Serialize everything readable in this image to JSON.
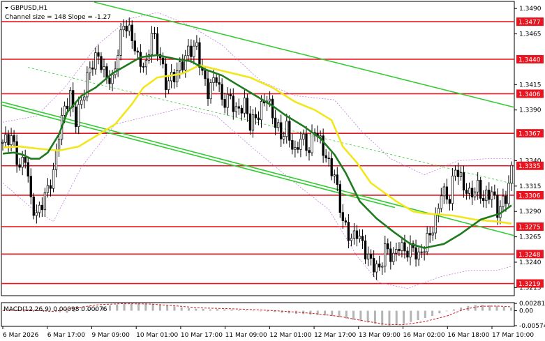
{
  "header": {
    "symbol": "GBPUSD,H1",
    "channel_info": "Channel size = 148 Slope = -1.27",
    "macd_label": "MACD(12,26,9) 0.00098 0.00076"
  },
  "colors": {
    "level_line": "#e8141f",
    "ma_fast": "#1f7a1f",
    "ma_slow": "#f2e61c",
    "channel": "#33cc33",
    "bollinger": "#c07ed6",
    "candle": "#000000",
    "macd_hist": "#b4b4b4",
    "macd_signal": "#cc1a1a",
    "last_price_bg": "#e8141f"
  },
  "chart_data": {
    "type": "candlestick",
    "price_axis_ticks": [
      "1.3490",
      "1.3465",
      "1.3415",
      "1.3390",
      "1.3340",
      "1.3315",
      "1.3290",
      "1.3265",
      "1.3240",
      "1.3215"
    ],
    "price_levels": [
      {
        "value": 1.3477,
        "label": "1.3477"
      },
      {
        "value": 1.344,
        "label": "1.3440"
      },
      {
        "value": 1.3406,
        "label": "1.3406"
      },
      {
        "value": 1.3367,
        "label": "1.3367"
      },
      {
        "value": 1.3335,
        "label": "1.3335"
      },
      {
        "value": 1.3306,
        "label": "1.3306"
      },
      {
        "value": 1.3275,
        "label": "1.3275"
      },
      {
        "value": 1.3248,
        "label": "1.3248"
      },
      {
        "value": 1.3219,
        "label": "1.3219"
      }
    ],
    "time_axis_labels": [
      "6 Mar 2026",
      "6 Mar 17:00",
      "9 Mar 09:00",
      "10 Mar 01:00",
      "10 Mar 17:00",
      "11 Mar 09:00",
      "12 Mar 01:00",
      "12 Mar 17:00",
      "13 Mar 09:00",
      "16 Mar 02:00",
      "16 Mar 18:00",
      "17 Mar 10:00"
    ],
    "macd_axis_ticks": [
      "0.00281",
      "0.00",
      "-0.00574"
    ],
    "ylim": [
      1.3207,
      1.3497
    ],
    "macd_ylim": [
      -0.006,
      0.0031
    ],
    "close_path": [
      [
        0,
        1.3358
      ],
      [
        3,
        1.3364
      ],
      [
        6,
        1.3332
      ],
      [
        8,
        1.3345
      ],
      [
        10,
        1.33
      ],
      [
        12,
        1.3286
      ],
      [
        15,
        1.3305
      ],
      [
        18,
        1.3327
      ],
      [
        20,
        1.3368
      ],
      [
        22,
        1.3392
      ],
      [
        24,
        1.3404
      ],
      [
        26,
        1.338
      ],
      [
        29,
        1.3409
      ],
      [
        31,
        1.3432
      ],
      [
        34,
        1.3444
      ],
      [
        36,
        1.3426
      ],
      [
        39,
        1.3418
      ],
      [
        41,
        1.3448
      ],
      [
        43,
        1.3476
      ],
      [
        46,
        1.3462
      ],
      [
        48,
        1.344
      ],
      [
        51,
        1.3432
      ],
      [
        53,
        1.3467
      ],
      [
        56,
        1.3442
      ],
      [
        58,
        1.3416
      ],
      [
        61,
        1.3424
      ],
      [
        64,
        1.3436
      ],
      [
        66,
        1.3448
      ],
      [
        69,
        1.3452
      ],
      [
        71,
        1.3426
      ],
      [
        73,
        1.3408
      ],
      [
        76,
        1.3424
      ],
      [
        78,
        1.3398
      ],
      [
        81,
        1.3402
      ],
      [
        83,
        1.3388
      ],
      [
        86,
        1.3396
      ],
      [
        88,
        1.3376
      ],
      [
        91,
        1.3386
      ],
      [
        94,
        1.3404
      ],
      [
        96,
        1.3384
      ],
      [
        99,
        1.3364
      ],
      [
        101,
        1.3372
      ],
      [
        104,
        1.3346
      ],
      [
        106,
        1.3364
      ],
      [
        109,
        1.335
      ],
      [
        111,
        1.3372
      ],
      [
        113,
        1.3358
      ],
      [
        116,
        1.3336
      ],
      [
        118,
        1.3326
      ],
      [
        121,
        1.328
      ],
      [
        124,
        1.3262
      ],
      [
        126,
        1.327
      ],
      [
        129,
        1.325
      ],
      [
        131,
        1.324
      ],
      [
        134,
        1.3232
      ],
      [
        136,
        1.3254
      ],
      [
        139,
        1.3244
      ],
      [
        141,
        1.3258
      ],
      [
        143,
        1.325
      ],
      [
        146,
        1.3254
      ],
      [
        148,
        1.3244
      ],
      [
        151,
        1.3262
      ],
      [
        154,
        1.328
      ],
      [
        156,
        1.331
      ],
      [
        159,
        1.3302
      ],
      [
        161,
        1.3334
      ],
      [
        164,
        1.3315
      ],
      [
        166,
        1.3306
      ],
      [
        169,
        1.3314
      ],
      [
        171,
        1.3302
      ],
      [
        174,
        1.331
      ],
      [
        176,
        1.329
      ],
      [
        179,
        1.3304
      ],
      [
        181,
        1.333
      ]
    ],
    "ma_fast": [
      [
        0,
        1.3347
      ],
      [
        4,
        1.3348
      ],
      [
        7,
        1.3346
      ],
      [
        10,
        1.3342
      ],
      [
        13,
        1.3342
      ],
      [
        16,
        1.3348
      ],
      [
        20,
        1.3366
      ],
      [
        23,
        1.3388
      ],
      [
        28,
        1.3404
      ],
      [
        33,
        1.3412
      ],
      [
        39,
        1.3426
      ],
      [
        44,
        1.3434
      ],
      [
        49,
        1.3442
      ],
      [
        55,
        1.3444
      ],
      [
        62,
        1.344
      ],
      [
        67,
        1.3438
      ],
      [
        72,
        1.343
      ],
      [
        78,
        1.3424
      ],
      [
        84,
        1.3414
      ],
      [
        90,
        1.3404
      ],
      [
        96,
        1.3394
      ],
      [
        101,
        1.3384
      ],
      [
        107,
        1.3374
      ],
      [
        113,
        1.3362
      ],
      [
        118,
        1.3346
      ],
      [
        122,
        1.3328
      ],
      [
        127,
        1.33
      ],
      [
        133,
        1.3283
      ],
      [
        139,
        1.327
      ],
      [
        145,
        1.3258
      ],
      [
        150,
        1.3254
      ],
      [
        157,
        1.3258
      ],
      [
        163,
        1.3268
      ],
      [
        170,
        1.3282
      ],
      [
        177,
        1.3288
      ],
      [
        181,
        1.3296
      ]
    ],
    "ma_slow": [
      [
        0,
        1.3353
      ],
      [
        6,
        1.3354
      ],
      [
        12,
        1.3352
      ],
      [
        20,
        1.335
      ],
      [
        27,
        1.3354
      ],
      [
        33,
        1.3364
      ],
      [
        40,
        1.3376
      ],
      [
        46,
        1.3396
      ],
      [
        50,
        1.3412
      ],
      [
        55,
        1.3422
      ],
      [
        60,
        1.3424
      ],
      [
        64,
        1.3426
      ],
      [
        70,
        1.3434
      ],
      [
        76,
        1.343
      ],
      [
        82,
        1.3426
      ],
      [
        88,
        1.3422
      ],
      [
        96,
        1.3412
      ],
      [
        104,
        1.3398
      ],
      [
        111,
        1.339
      ],
      [
        117,
        1.338
      ],
      [
        121,
        1.3354
      ],
      [
        126,
        1.3338
      ],
      [
        131,
        1.3318
      ],
      [
        136,
        1.3308
      ],
      [
        140,
        1.33
      ],
      [
        146,
        1.329
      ],
      [
        150,
        1.3288
      ],
      [
        160,
        1.3286
      ],
      [
        168,
        1.3282
      ],
      [
        176,
        1.328
      ],
      [
        181,
        1.3278
      ]
    ],
    "bb_upper": [
      [
        0,
        1.3378
      ],
      [
        12,
        1.3384
      ],
      [
        22,
        1.3412
      ],
      [
        34,
        1.3455
      ],
      [
        45,
        1.348
      ],
      [
        55,
        1.3486
      ],
      [
        66,
        1.3474
      ],
      [
        78,
        1.3454
      ],
      [
        92,
        1.3418
      ],
      [
        104,
        1.3404
      ],
      [
        118,
        1.34
      ],
      [
        128,
        1.3368
      ],
      [
        138,
        1.3342
      ],
      [
        150,
        1.3326
      ],
      [
        162,
        1.334
      ],
      [
        172,
        1.3342
      ],
      [
        181,
        1.3342
      ]
    ],
    "bb_lower": [
      [
        0,
        1.3318
      ],
      [
        10,
        1.3294
      ],
      [
        18,
        1.328
      ],
      [
        28,
        1.3334
      ],
      [
        40,
        1.3376
      ],
      [
        52,
        1.3384
      ],
      [
        64,
        1.3392
      ],
      [
        76,
        1.3384
      ],
      [
        90,
        1.335
      ],
      [
        104,
        1.3318
      ],
      [
        116,
        1.3292
      ],
      [
        126,
        1.3246
      ],
      [
        134,
        1.322
      ],
      [
        144,
        1.3214
      ],
      [
        156,
        1.3226
      ],
      [
        166,
        1.3232
      ],
      [
        176,
        1.3232
      ],
      [
        181,
        1.3236
      ]
    ],
    "macd_hist": [
      0.0002,
      0.0003,
      0.0004,
      0.0005,
      0.0004,
      0.0002,
      0.0,
      -0.0003,
      -0.0006,
      -0.0008,
      -0.0004,
      0.0001,
      0.0006,
      0.001,
      0.0015,
      0.002,
      0.0024,
      0.0026,
      0.0027,
      0.0028,
      0.00275,
      0.0026,
      0.0024,
      0.002,
      0.0017,
      0.0013,
      0.001,
      0.0008,
      0.0007,
      0.0005,
      0.0006,
      0.0005,
      0.0004,
      0.0002,
      0.0,
      -0.0001,
      -0.0002,
      -0.0003,
      -0.0005,
      -0.0008,
      -0.001,
      -0.0012,
      -0.0013,
      -0.0015,
      -0.0016,
      -0.0018,
      -0.002,
      -0.0025,
      -0.003,
      -0.0035,
      -0.004,
      -0.0045,
      -0.005,
      -0.0056,
      -0.0057,
      -0.0054,
      -0.005,
      -0.0043,
      -0.0036,
      -0.0028,
      -0.002,
      -0.001,
      -0.0002,
      0.0005,
      0.0012,
      0.0018,
      0.0022,
      0.0023,
      0.0021,
      0.0018,
      0.0015,
      0.0012
    ],
    "macd_signal": [
      [
        0,
        0.0001
      ],
      [
        10,
        0.0003
      ],
      [
        18,
        -0.0003
      ],
      [
        24,
        0.0008
      ],
      [
        34,
        0.0023
      ],
      [
        42,
        0.0027
      ],
      [
        52,
        0.0026
      ],
      [
        60,
        0.002
      ],
      [
        70,
        0.0011
      ],
      [
        80,
        0.0008
      ],
      [
        90,
        0.0004
      ],
      [
        100,
        -0.0002
      ],
      [
        110,
        -0.001
      ],
      [
        120,
        -0.0022
      ],
      [
        128,
        -0.0038
      ],
      [
        136,
        -0.0052
      ],
      [
        142,
        -0.0054
      ],
      [
        150,
        -0.0042
      ],
      [
        158,
        -0.002
      ],
      [
        164,
        0.0005
      ],
      [
        170,
        0.0017
      ],
      [
        176,
        0.0018
      ],
      [
        181,
        0.0015
      ]
    ]
  }
}
